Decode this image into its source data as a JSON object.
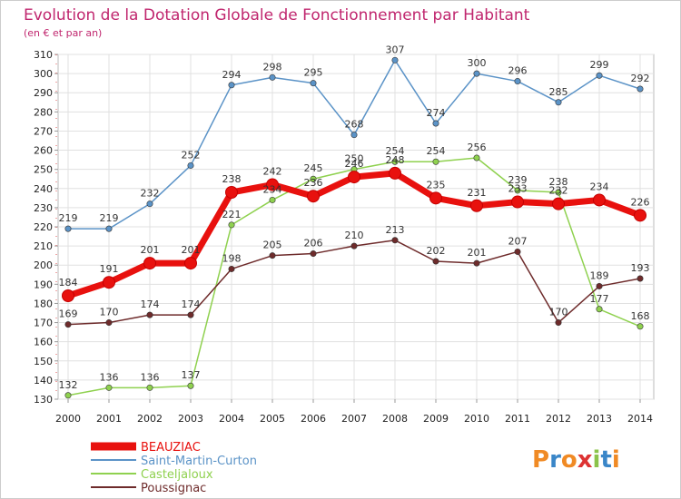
{
  "chart_data": {
    "type": "line",
    "title": "Evolution de la Dotation Globale de Fonctionnement par Habitant",
    "subtitle": "(en € et par an)",
    "xlabel": "",
    "ylabel": "",
    "ylim": [
      130,
      310
    ],
    "ytick_step": 10,
    "grid": true,
    "legend_position": "bottom-left",
    "categories": [
      "2000",
      "2001",
      "2002",
      "2003",
      "2004",
      "2005",
      "2006",
      "2007",
      "2008",
      "2009",
      "2010",
      "2011",
      "2012",
      "2013",
      "2014"
    ],
    "series": [
      {
        "name": "Saint-Martin-Curton",
        "color": "#5b93c7",
        "values": [
          219,
          219,
          232,
          252,
          294,
          298,
          295,
          268,
          307,
          274,
          300,
          296,
          285,
          299,
          292
        ]
      },
      {
        "name": "Casteljaloux",
        "color": "#8fd14f",
        "values": [
          132,
          136,
          136,
          137,
          221,
          234,
          245,
          250,
          254,
          254,
          256,
          239,
          238,
          177,
          168
        ]
      },
      {
        "name": "Poussignac",
        "color": "#6e2b2b",
        "values": [
          169,
          170,
          174,
          174,
          198,
          205,
          206,
          210,
          213,
          202,
          201,
          207,
          170,
          189,
          193
        ]
      },
      {
        "name": "BEAUZIAC",
        "color": "#e8110e",
        "values": [
          184,
          191,
          201,
          201,
          238,
          242,
          236,
          246,
          248,
          235,
          231,
          233,
          232,
          234,
          226
        ]
      }
    ],
    "legend_order": [
      "BEAUZIAC",
      "Saint-Martin-Curton",
      "Casteljaloux",
      "Poussignac"
    ]
  },
  "logo": {
    "text": "Proxiti",
    "letters": [
      "P",
      "r",
      "o",
      "x",
      "i",
      "t",
      "i"
    ]
  }
}
